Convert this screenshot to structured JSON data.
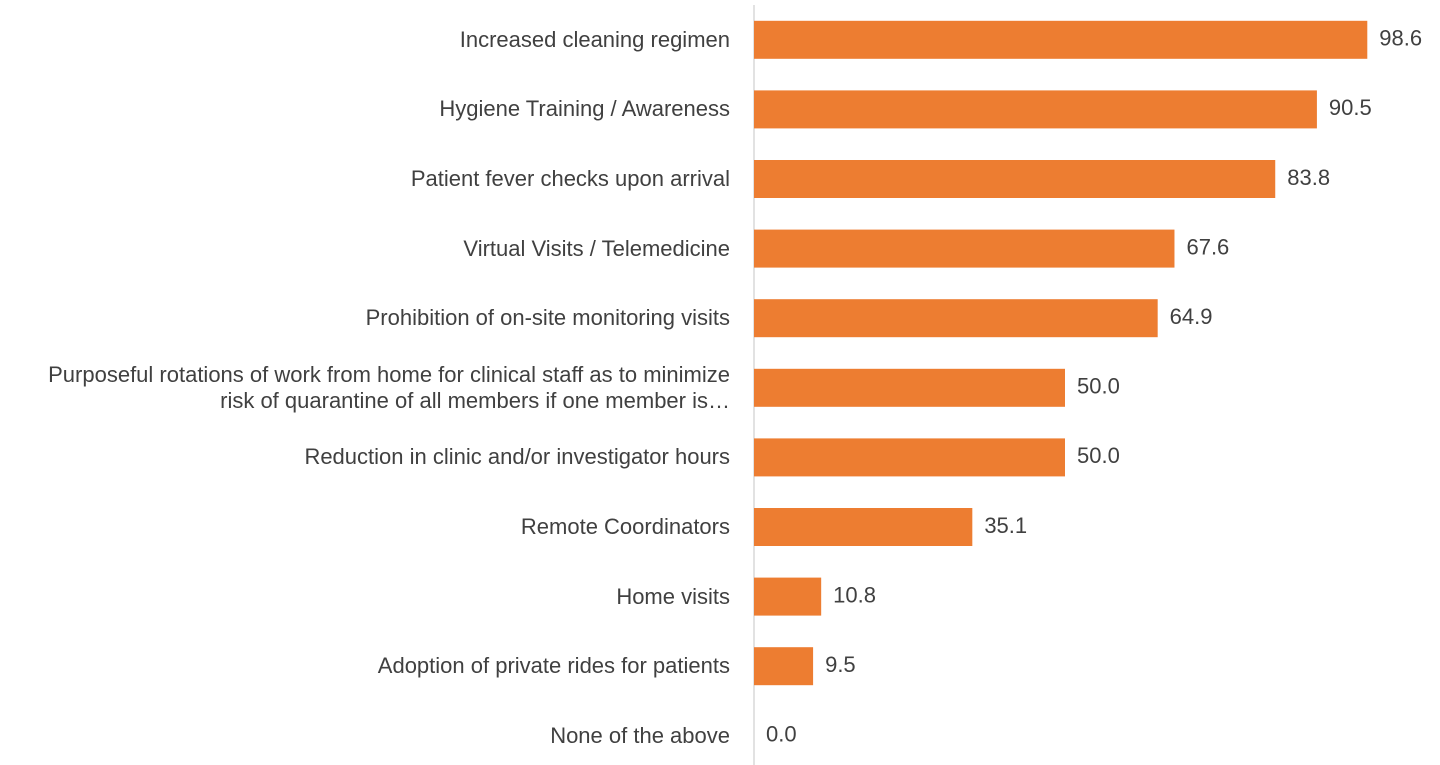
{
  "chart_data": {
    "type": "bar",
    "orientation": "horizontal",
    "categories": [
      "Increased cleaning regimen",
      "Hygiene Training / Awareness",
      "Patient fever checks upon arrival",
      "Virtual Visits / Telemedicine",
      "Prohibition of on-site monitoring visits",
      "Purposeful rotations of work from home for clinical staff as to minimize risk of quarantine of all members if one member is…",
      "Reduction in clinic and/or investigator hours",
      "Remote Coordinators",
      "Home visits",
      "Adoption of private rides for patients",
      "None of the above"
    ],
    "values": [
      98.6,
      90.5,
      83.8,
      67.6,
      64.9,
      50,
      50,
      35.1,
      10.8,
      9.5,
      0
    ],
    "value_labels": [
      "98.6",
      "90.5",
      "83.8",
      "67.6",
      "64.9",
      "50.0",
      "50.0",
      "35.1",
      "10.8",
      "9.5",
      "0.0"
    ],
    "color": "#ed7d31",
    "xlim": [
      0,
      100
    ]
  }
}
